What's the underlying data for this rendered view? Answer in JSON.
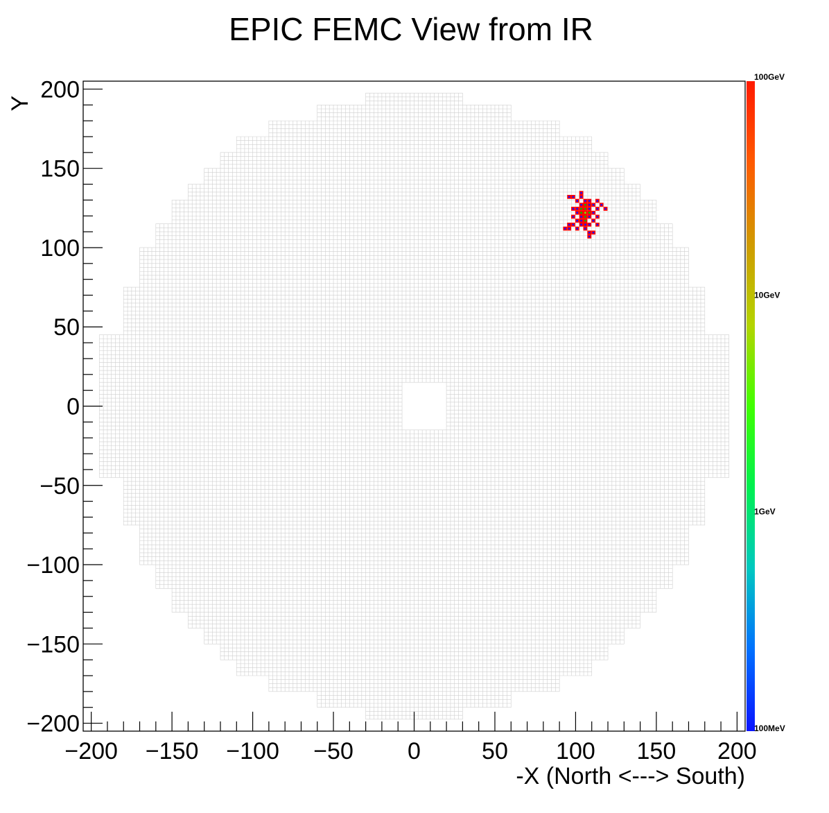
{
  "chart_data": {
    "type": "heatmap",
    "title": "EPIC FEMC View from IR",
    "xlabel": "-X (North <---> South)",
    "ylabel": "Y",
    "xlim": [
      -205,
      205
    ],
    "ylim": [
      -205,
      205
    ],
    "x_ticks": [
      {
        "value": -200,
        "label": "−200"
      },
      {
        "value": -150,
        "label": "−150"
      },
      {
        "value": -100,
        "label": "−100"
      },
      {
        "value": -50,
        "label": "−50"
      },
      {
        "value": 0,
        "label": "0"
      },
      {
        "value": 50,
        "label": "50"
      },
      {
        "value": 100,
        "label": "100"
      },
      {
        "value": 150,
        "label": "150"
      },
      {
        "value": 200,
        "label": "200"
      }
    ],
    "y_ticks": [
      {
        "value": 200,
        "label": "200"
      },
      {
        "value": 150,
        "label": "150"
      },
      {
        "value": 100,
        "label": "100"
      },
      {
        "value": 50,
        "label": "50"
      },
      {
        "value": 0,
        "label": "0"
      },
      {
        "value": -50,
        "label": "−50"
      },
      {
        "value": -100,
        "label": "−100"
      },
      {
        "value": -150,
        "label": "−150"
      },
      {
        "value": -200,
        "label": "−200"
      }
    ],
    "detector": {
      "cell_size": 2.5,
      "beam_hole": {
        "x": [
          -8,
          20
        ],
        "y": [
          -15,
          15
        ]
      },
      "rows": [
        {
          "y": [
            190,
            197.5
          ],
          "x": [
            -30,
            30
          ]
        },
        {
          "y": [
            180,
            190
          ],
          "x": [
            -60,
            60
          ]
        },
        {
          "y": [
            170,
            180
          ],
          "x": [
            -90,
            90
          ]
        },
        {
          "y": [
            160,
            170
          ],
          "x": [
            -110,
            110
          ]
        },
        {
          "y": [
            150,
            160
          ],
          "x": [
            -120,
            120
          ]
        },
        {
          "y": [
            140,
            150
          ],
          "x": [
            -130,
            130
          ]
        },
        {
          "y": [
            130,
            140
          ],
          "x": [
            -140,
            140
          ]
        },
        {
          "y": [
            115,
            130
          ],
          "x": [
            -150,
            150
          ]
        },
        {
          "y": [
            100,
            115
          ],
          "x": [
            -160,
            160
          ]
        },
        {
          "y": [
            75,
            100
          ],
          "x": [
            -170,
            170
          ]
        },
        {
          "y": [
            45,
            75
          ],
          "x": [
            -180,
            180
          ]
        },
        {
          "y": [
            -45,
            45
          ],
          "x": [
            -195,
            195
          ]
        },
        {
          "y": [
            -75,
            -45
          ],
          "x": [
            -180,
            180
          ]
        },
        {
          "y": [
            -100,
            -75
          ],
          "x": [
            -170,
            170
          ]
        },
        {
          "y": [
            -115,
            -100
          ],
          "x": [
            -160,
            160
          ]
        },
        {
          "y": [
            -130,
            -115
          ],
          "x": [
            -150,
            150
          ]
        },
        {
          "y": [
            -140,
            -130
          ],
          "x": [
            -140,
            140
          ]
        },
        {
          "y": [
            -150,
            -140
          ],
          "x": [
            -130,
            130
          ]
        },
        {
          "y": [
            -160,
            -150
          ],
          "x": [
            -120,
            120
          ]
        },
        {
          "y": [
            -170,
            -160
          ],
          "x": [
            -110,
            110
          ]
        },
        {
          "y": [
            -180,
            -170
          ],
          "x": [
            -90,
            90
          ]
        },
        {
          "y": [
            -190,
            -180
          ],
          "x": [
            -60,
            60
          ]
        },
        {
          "y": [
            -197.5,
            -190
          ],
          "x": [
            -30,
            30
          ]
        }
      ]
    },
    "hits": [
      {
        "x": 103.5,
        "y": 134.5,
        "edep": "low"
      },
      {
        "x": 96,
        "y": 132,
        "edep": "low"
      },
      {
        "x": 98.5,
        "y": 132,
        "edep": "low"
      },
      {
        "x": 103.5,
        "y": 132,
        "edep": "low"
      },
      {
        "x": 101,
        "y": 129.5,
        "edep": "low"
      },
      {
        "x": 106,
        "y": 129.5,
        "edep": "low"
      },
      {
        "x": 108.5,
        "y": 129.5,
        "edep": "low"
      },
      {
        "x": 113.5,
        "y": 129.5,
        "edep": "low"
      },
      {
        "x": 103.5,
        "y": 127,
        "edep": "low"
      },
      {
        "x": 106,
        "y": 127,
        "edep": "mid"
      },
      {
        "x": 108.5,
        "y": 127,
        "edep": "low"
      },
      {
        "x": 111,
        "y": 127,
        "edep": "low"
      },
      {
        "x": 116,
        "y": 127,
        "edep": "low"
      },
      {
        "x": 98.5,
        "y": 124.5,
        "edep": "low"
      },
      {
        "x": 101,
        "y": 124.5,
        "edep": "low"
      },
      {
        "x": 103.5,
        "y": 124.5,
        "edep": "mid"
      },
      {
        "x": 106,
        "y": 124.5,
        "edep": "mid"
      },
      {
        "x": 108.5,
        "y": 124.5,
        "edep": "low"
      },
      {
        "x": 113.5,
        "y": 124.5,
        "edep": "low"
      },
      {
        "x": 118.5,
        "y": 124.5,
        "edep": "low"
      },
      {
        "x": 101,
        "y": 122,
        "edep": "low"
      },
      {
        "x": 103.5,
        "y": 122,
        "edep": "mid"
      },
      {
        "x": 106,
        "y": 122,
        "edep": "high"
      },
      {
        "x": 108.5,
        "y": 122,
        "edep": "mid"
      },
      {
        "x": 111,
        "y": 122,
        "edep": "low"
      },
      {
        "x": 98.5,
        "y": 119.5,
        "edep": "low"
      },
      {
        "x": 103.5,
        "y": 119.5,
        "edep": "low"
      },
      {
        "x": 106,
        "y": 119.5,
        "edep": "mid"
      },
      {
        "x": 108.5,
        "y": 119.5,
        "edep": "low"
      },
      {
        "x": 113.5,
        "y": 119.5,
        "edep": "low"
      },
      {
        "x": 101,
        "y": 117,
        "edep": "low"
      },
      {
        "x": 103.5,
        "y": 117,
        "edep": "low"
      },
      {
        "x": 106,
        "y": 117,
        "edep": "mid"
      },
      {
        "x": 111,
        "y": 117,
        "edep": "low"
      },
      {
        "x": 96,
        "y": 114.5,
        "edep": "low"
      },
      {
        "x": 98.5,
        "y": 114.5,
        "edep": "low"
      },
      {
        "x": 103.5,
        "y": 114.5,
        "edep": "low"
      },
      {
        "x": 106,
        "y": 114.5,
        "edep": "low"
      },
      {
        "x": 108.5,
        "y": 114.5,
        "edep": "low"
      },
      {
        "x": 113.5,
        "y": 114.5,
        "edep": "low"
      },
      {
        "x": 93.5,
        "y": 112,
        "edep": "low"
      },
      {
        "x": 96,
        "y": 112,
        "edep": "low"
      },
      {
        "x": 101,
        "y": 112,
        "edep": "low"
      },
      {
        "x": 106,
        "y": 112,
        "edep": "low"
      },
      {
        "x": 108.5,
        "y": 109.5,
        "edep": "low"
      },
      {
        "x": 111,
        "y": 109.5,
        "edep": "low"
      },
      {
        "x": 108.5,
        "y": 107,
        "edep": "low"
      }
    ],
    "palette": {
      "scale": "log",
      "range": [
        "100MeV",
        "100GeV"
      ],
      "labels": [
        "100GeV",
        "10GeV",
        "1GeV",
        "100MeV"
      ],
      "colors": [
        "#0a14ff",
        "#0070ff",
        "#00c8c0",
        "#00f050",
        "#40ff00",
        "#b4d400",
        "#d09a00",
        "#ff5a00",
        "#ff1a00"
      ]
    },
    "colors": {
      "cell_stroke": "#cfcfcf",
      "hit_border": "#ff0000",
      "hit_low": "#1a10ff",
      "hit_mid": "#00c000",
      "hit_high": "#60ff00"
    }
  }
}
